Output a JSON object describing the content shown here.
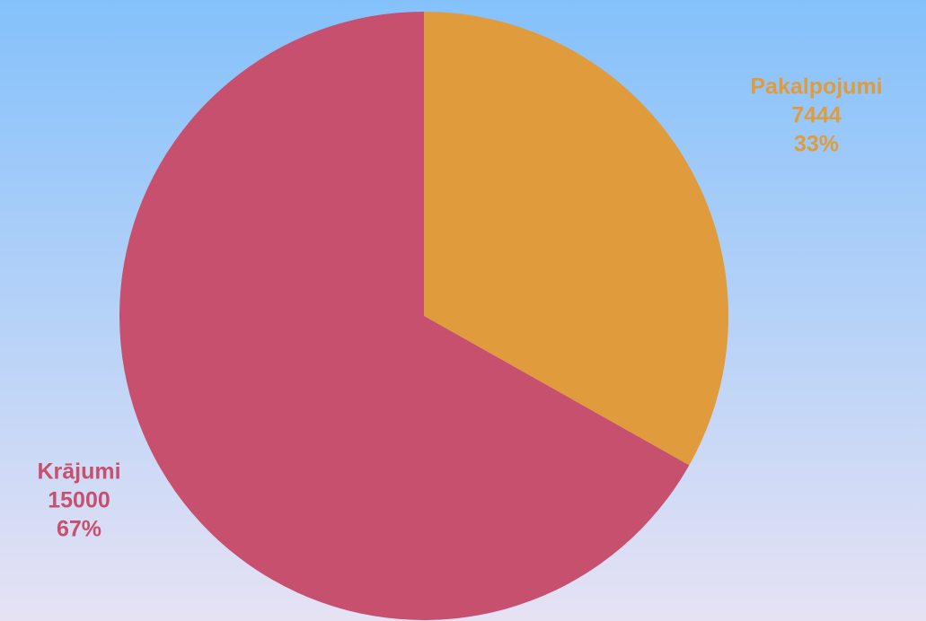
{
  "chart_data": {
    "type": "pie",
    "categories": [
      "Pakalpojumi",
      "Krājumi"
    ],
    "values": [
      7444,
      15000
    ],
    "percents": [
      33,
      67
    ],
    "percent_labels": [
      "33%",
      "67%"
    ],
    "colors": [
      "#e09c3c",
      "#c7506f"
    ]
  }
}
